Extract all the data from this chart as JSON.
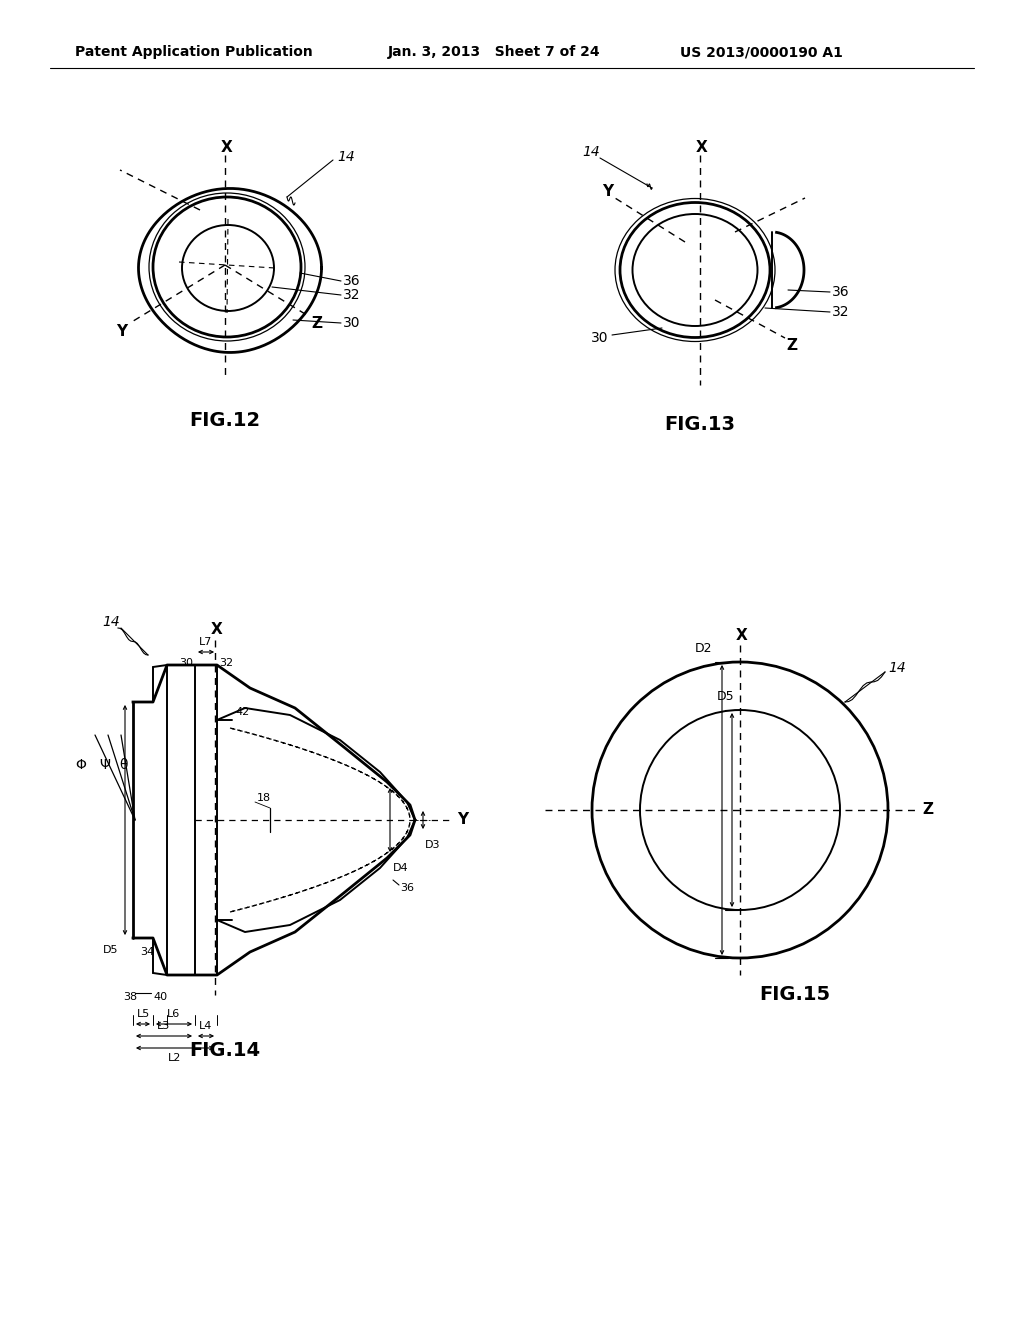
{
  "header_left": "Patent Application Publication",
  "header_mid": "Jan. 3, 2013   Sheet 7 of 24",
  "header_right": "US 2013/0000190 A1",
  "fig12_label": "FIG.12",
  "fig13_label": "FIG.13",
  "fig14_label": "FIG.14",
  "fig15_label": "FIG.15",
  "background": "#ffffff",
  "line_color": "#000000"
}
